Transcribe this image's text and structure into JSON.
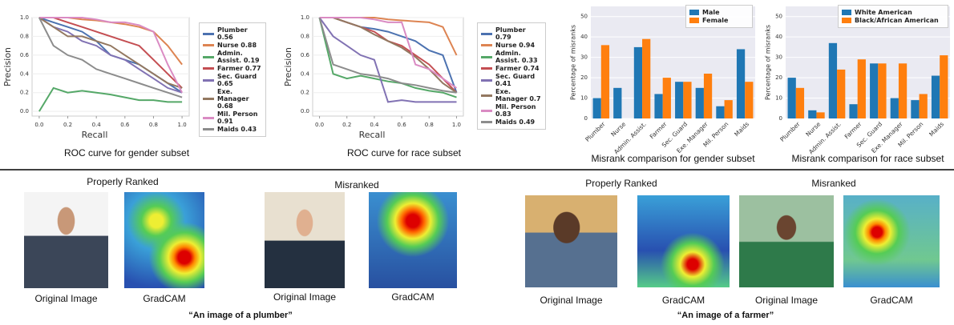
{
  "chart_data": [
    {
      "type": "line",
      "title": "ROC curve for gender subset",
      "xlabel": "Recall",
      "ylabel": "Precision",
      "x": [
        0,
        0.1,
        0.2,
        0.3,
        0.4,
        0.5,
        0.6,
        0.7,
        0.8,
        0.9,
        1.0
      ],
      "xlim": [
        -0.05,
        1.05
      ],
      "ylim": [
        -0.05,
        1.0
      ],
      "xticks": [
        {
          "value": 0,
          "label": "0.0"
        },
        {
          "value": 0.2,
          "label": "0.2"
        },
        {
          "value": 0.4,
          "label": "0.4"
        },
        {
          "value": 0.6,
          "label": "0.6"
        },
        {
          "value": 0.8,
          "label": "0.8"
        },
        {
          "value": 1.0,
          "label": "1.0"
        }
      ],
      "yticks": [
        {
          "value": 0,
          "label": "0.0"
        },
        {
          "value": 0.2,
          "label": "0.2"
        },
        {
          "value": 0.4,
          "label": "0.4"
        },
        {
          "value": 0.6,
          "label": "0.6"
        },
        {
          "value": 0.8,
          "label": "0.8"
        },
        {
          "value": 1.0,
          "label": "1.0"
        }
      ],
      "series": [
        {
          "name": "Plumber 0.56",
          "color": "#4c72b0",
          "values": [
            1.0,
            0.95,
            0.9,
            0.85,
            0.75,
            0.6,
            0.55,
            0.5,
            0.4,
            0.3,
            0.2
          ]
        },
        {
          "name": "Nurse 0.88",
          "color": "#dd8452",
          "values": [
            1.0,
            1.0,
            1.0,
            0.98,
            0.97,
            0.95,
            0.93,
            0.9,
            0.85,
            0.7,
            0.5
          ]
        },
        {
          "name": "Admin. Assist. 0.19",
          "color": "#55a868",
          "values": [
            0.0,
            0.25,
            0.2,
            0.22,
            0.2,
            0.18,
            0.15,
            0.12,
            0.12,
            0.1,
            0.1
          ]
        },
        {
          "name": "Farmer 0.77",
          "color": "#c44e52",
          "values": [
            1.0,
            1.0,
            0.95,
            0.9,
            0.85,
            0.8,
            0.75,
            0.7,
            0.55,
            0.4,
            0.25
          ]
        },
        {
          "name": "Sec. Guard 0.65",
          "color": "#8172b3",
          "values": [
            1.0,
            0.9,
            0.85,
            0.75,
            0.7,
            0.6,
            0.55,
            0.45,
            0.35,
            0.25,
            0.2
          ]
        },
        {
          "name": "Exe. Manager 0.68",
          "color": "#937860",
          "values": [
            1.0,
            0.9,
            0.8,
            0.8,
            0.75,
            0.7,
            0.6,
            0.5,
            0.4,
            0.3,
            0.25
          ]
        },
        {
          "name": "Mil. Person 0.91",
          "color": "#da8bc3",
          "values": [
            1.0,
            1.0,
            1.0,
            1.0,
            0.98,
            0.95,
            0.95,
            0.92,
            0.85,
            0.5,
            0.2
          ]
        },
        {
          "name": "Maids 0.43",
          "color": "#8c8c8c",
          "values": [
            1.0,
            0.7,
            0.6,
            0.55,
            0.45,
            0.4,
            0.35,
            0.3,
            0.25,
            0.2,
            0.15
          ]
        }
      ]
    },
    {
      "type": "line",
      "title": "ROC curve for race subset",
      "xlabel": "Recall",
      "ylabel": "Precision",
      "x": [
        0,
        0.1,
        0.2,
        0.3,
        0.4,
        0.5,
        0.6,
        0.7,
        0.8,
        0.9,
        1.0
      ],
      "xlim": [
        -0.05,
        1.05
      ],
      "ylim": [
        -0.05,
        1.0
      ],
      "xticks": [
        {
          "value": 0,
          "label": "0.0"
        },
        {
          "value": 0.2,
          "label": "0.2"
        },
        {
          "value": 0.4,
          "label": "0.4"
        },
        {
          "value": 0.6,
          "label": "0.6"
        },
        {
          "value": 0.8,
          "label": "0.8"
        },
        {
          "value": 1.0,
          "label": "1.0"
        }
      ],
      "yticks": [
        {
          "value": 0,
          "label": "0.0"
        },
        {
          "value": 0.2,
          "label": "0.2"
        },
        {
          "value": 0.4,
          "label": "0.4"
        },
        {
          "value": 0.6,
          "label": "0.6"
        },
        {
          "value": 0.8,
          "label": "0.8"
        },
        {
          "value": 1.0,
          "label": "1.0"
        }
      ],
      "series": [
        {
          "name": "Plumber 0.79",
          "color": "#4c72b0",
          "values": [
            1.0,
            1.0,
            0.95,
            0.9,
            0.88,
            0.85,
            0.8,
            0.75,
            0.65,
            0.6,
            0.2
          ]
        },
        {
          "name": "Nurse 0.94",
          "color": "#dd8452",
          "values": [
            1.0,
            1.0,
            1.0,
            1.0,
            1.0,
            0.98,
            0.97,
            0.96,
            0.95,
            0.9,
            0.6
          ]
        },
        {
          "name": "Admin. Assist. 0.33",
          "color": "#55a868",
          "values": [
            1.0,
            0.4,
            0.35,
            0.38,
            0.35,
            0.32,
            0.3,
            0.25,
            0.22,
            0.2,
            0.15
          ]
        },
        {
          "name": "Farmer 0.74",
          "color": "#c44e52",
          "values": [
            1.0,
            1.0,
            0.95,
            0.9,
            0.85,
            0.75,
            0.7,
            0.6,
            0.5,
            0.35,
            0.2
          ]
        },
        {
          "name": "Sec. Guard 0.41",
          "color": "#8172b3",
          "values": [
            1.0,
            0.8,
            0.7,
            0.6,
            0.55,
            0.1,
            0.12,
            0.1,
            0.1,
            0.1,
            0.1
          ]
        },
        {
          "name": "Exe. Manager 0.7",
          "color": "#937860",
          "values": [
            1.0,
            1.0,
            0.95,
            0.9,
            0.82,
            0.75,
            0.68,
            0.58,
            0.45,
            0.3,
            0.2
          ]
        },
        {
          "name": "Mil. Person 0.83",
          "color": "#da8bc3",
          "values": [
            1.0,
            1.0,
            1.0,
            1.0,
            0.98,
            0.95,
            0.95,
            0.5,
            0.45,
            0.35,
            0.25
          ]
        },
        {
          "name": "Maids 0.49",
          "color": "#8c8c8c",
          "values": [
            1.0,
            0.5,
            0.45,
            0.4,
            0.38,
            0.35,
            0.3,
            0.28,
            0.25,
            0.22,
            0.2
          ]
        }
      ]
    },
    {
      "type": "bar",
      "title": "Misrank comparison for gender subset",
      "ylabel": "Percentage of misranks",
      "categories": [
        "Plumber",
        "Nurse",
        "Admin. Assist.",
        "Farmer",
        "Sec. Guard",
        "Exe. Manager",
        "Mil. Person",
        "Maids"
      ],
      "ylim": [
        0,
        55
      ],
      "yticks": [
        0,
        10,
        20,
        30,
        40,
        50
      ],
      "series": [
        {
          "name": "Male",
          "color": "#1f77b4",
          "values": [
            10,
            15,
            35,
            12,
            18,
            15,
            6,
            34
          ]
        },
        {
          "name": "Female",
          "color": "#ff7f0e",
          "values": [
            36,
            0,
            39,
            20,
            18,
            22,
            9,
            18
          ]
        }
      ]
    },
    {
      "type": "bar",
      "title": "Misrank comparison for race subset",
      "ylabel": "Percentage of misranks",
      "categories": [
        "Plumber",
        "Nurse",
        "Admin. Assist.",
        "Farmer",
        "Sec. Guard",
        "Exe. Manager",
        "Mil. Person",
        "Maids"
      ],
      "ylim": [
        0,
        55
      ],
      "yticks": [
        0,
        10,
        20,
        30,
        40,
        50
      ],
      "series": [
        {
          "name": "White American",
          "color": "#1f77b4",
          "values": [
            20,
            4,
            37,
            7,
            27,
            10,
            9,
            21
          ]
        },
        {
          "name": "Black/African American",
          "color": "#ff7f0e",
          "values": [
            15,
            3,
            24,
            29,
            27,
            27,
            12,
            31
          ]
        }
      ]
    }
  ],
  "examples": [
    {
      "caption": "“An image of a plumber”",
      "groups": [
        {
          "title": "Properly Ranked",
          "images": [
            "Original Image",
            "GradCAM"
          ]
        },
        {
          "title": "Misranked",
          "images": [
            "Original Image",
            "GradCAM"
          ]
        }
      ]
    },
    {
      "caption": "“An image of a farmer”",
      "groups": [
        {
          "title": "Properly Ranked",
          "images": [
            "Original Image",
            "GradCAM"
          ]
        },
        {
          "title": "Misranked",
          "images": [
            "Original Image",
            "GradCAM"
          ]
        }
      ]
    }
  ]
}
